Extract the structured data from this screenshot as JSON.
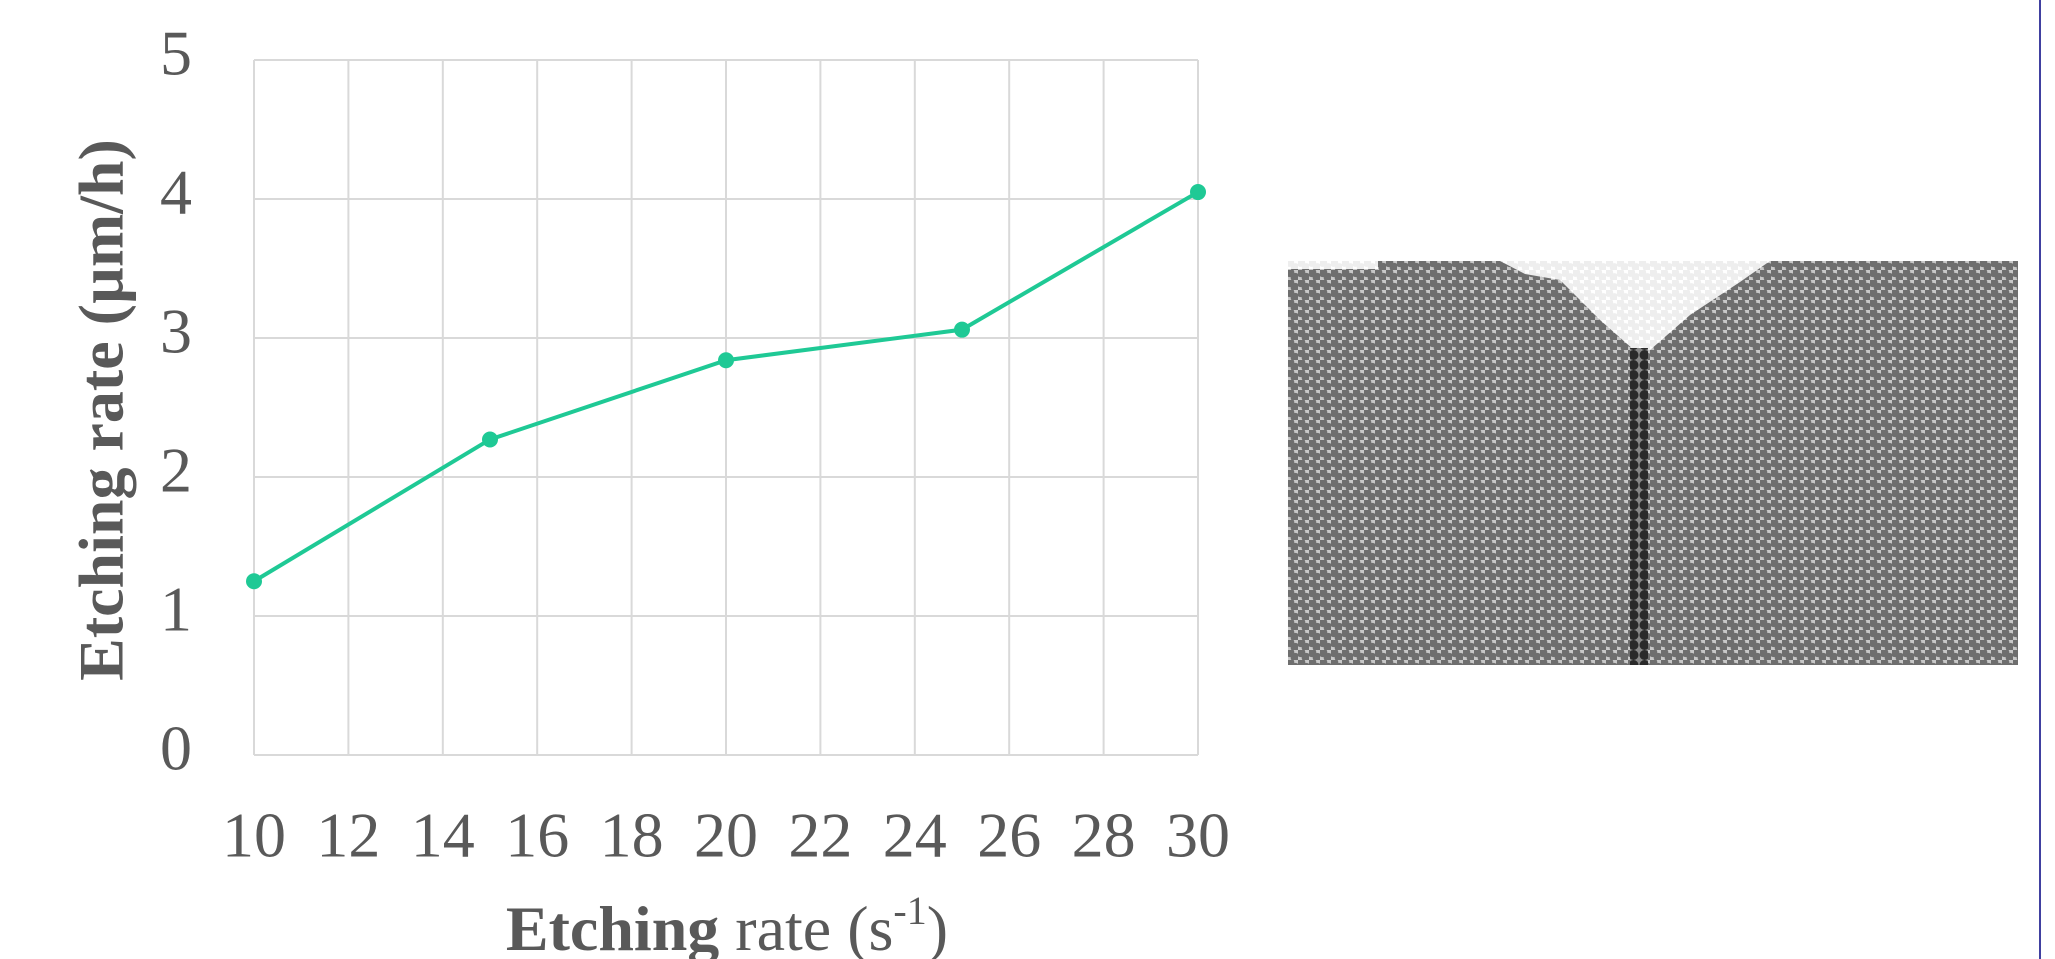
{
  "chart_data": {
    "type": "line",
    "x_label": {
      "bold": "Etching",
      "text": " rate (s",
      "sup": "-1",
      "end": ")"
    },
    "y_label": "Etching rate (µm/h)",
    "x": [
      10,
      15,
      20,
      25,
      30
    ],
    "series": [
      {
        "color": "#1fc995",
        "values": [
          1.25,
          2.27,
          2.84,
          3.06,
          4.05
        ]
      }
    ],
    "xlim": [
      10,
      30
    ],
    "xticks": [
      10,
      12,
      14,
      16,
      18,
      20,
      22,
      24,
      26,
      28,
      30
    ],
    "ylim": [
      0,
      5
    ],
    "yticks": [
      0,
      1,
      2,
      3,
      4,
      5
    ],
    "grid": true
  }
}
